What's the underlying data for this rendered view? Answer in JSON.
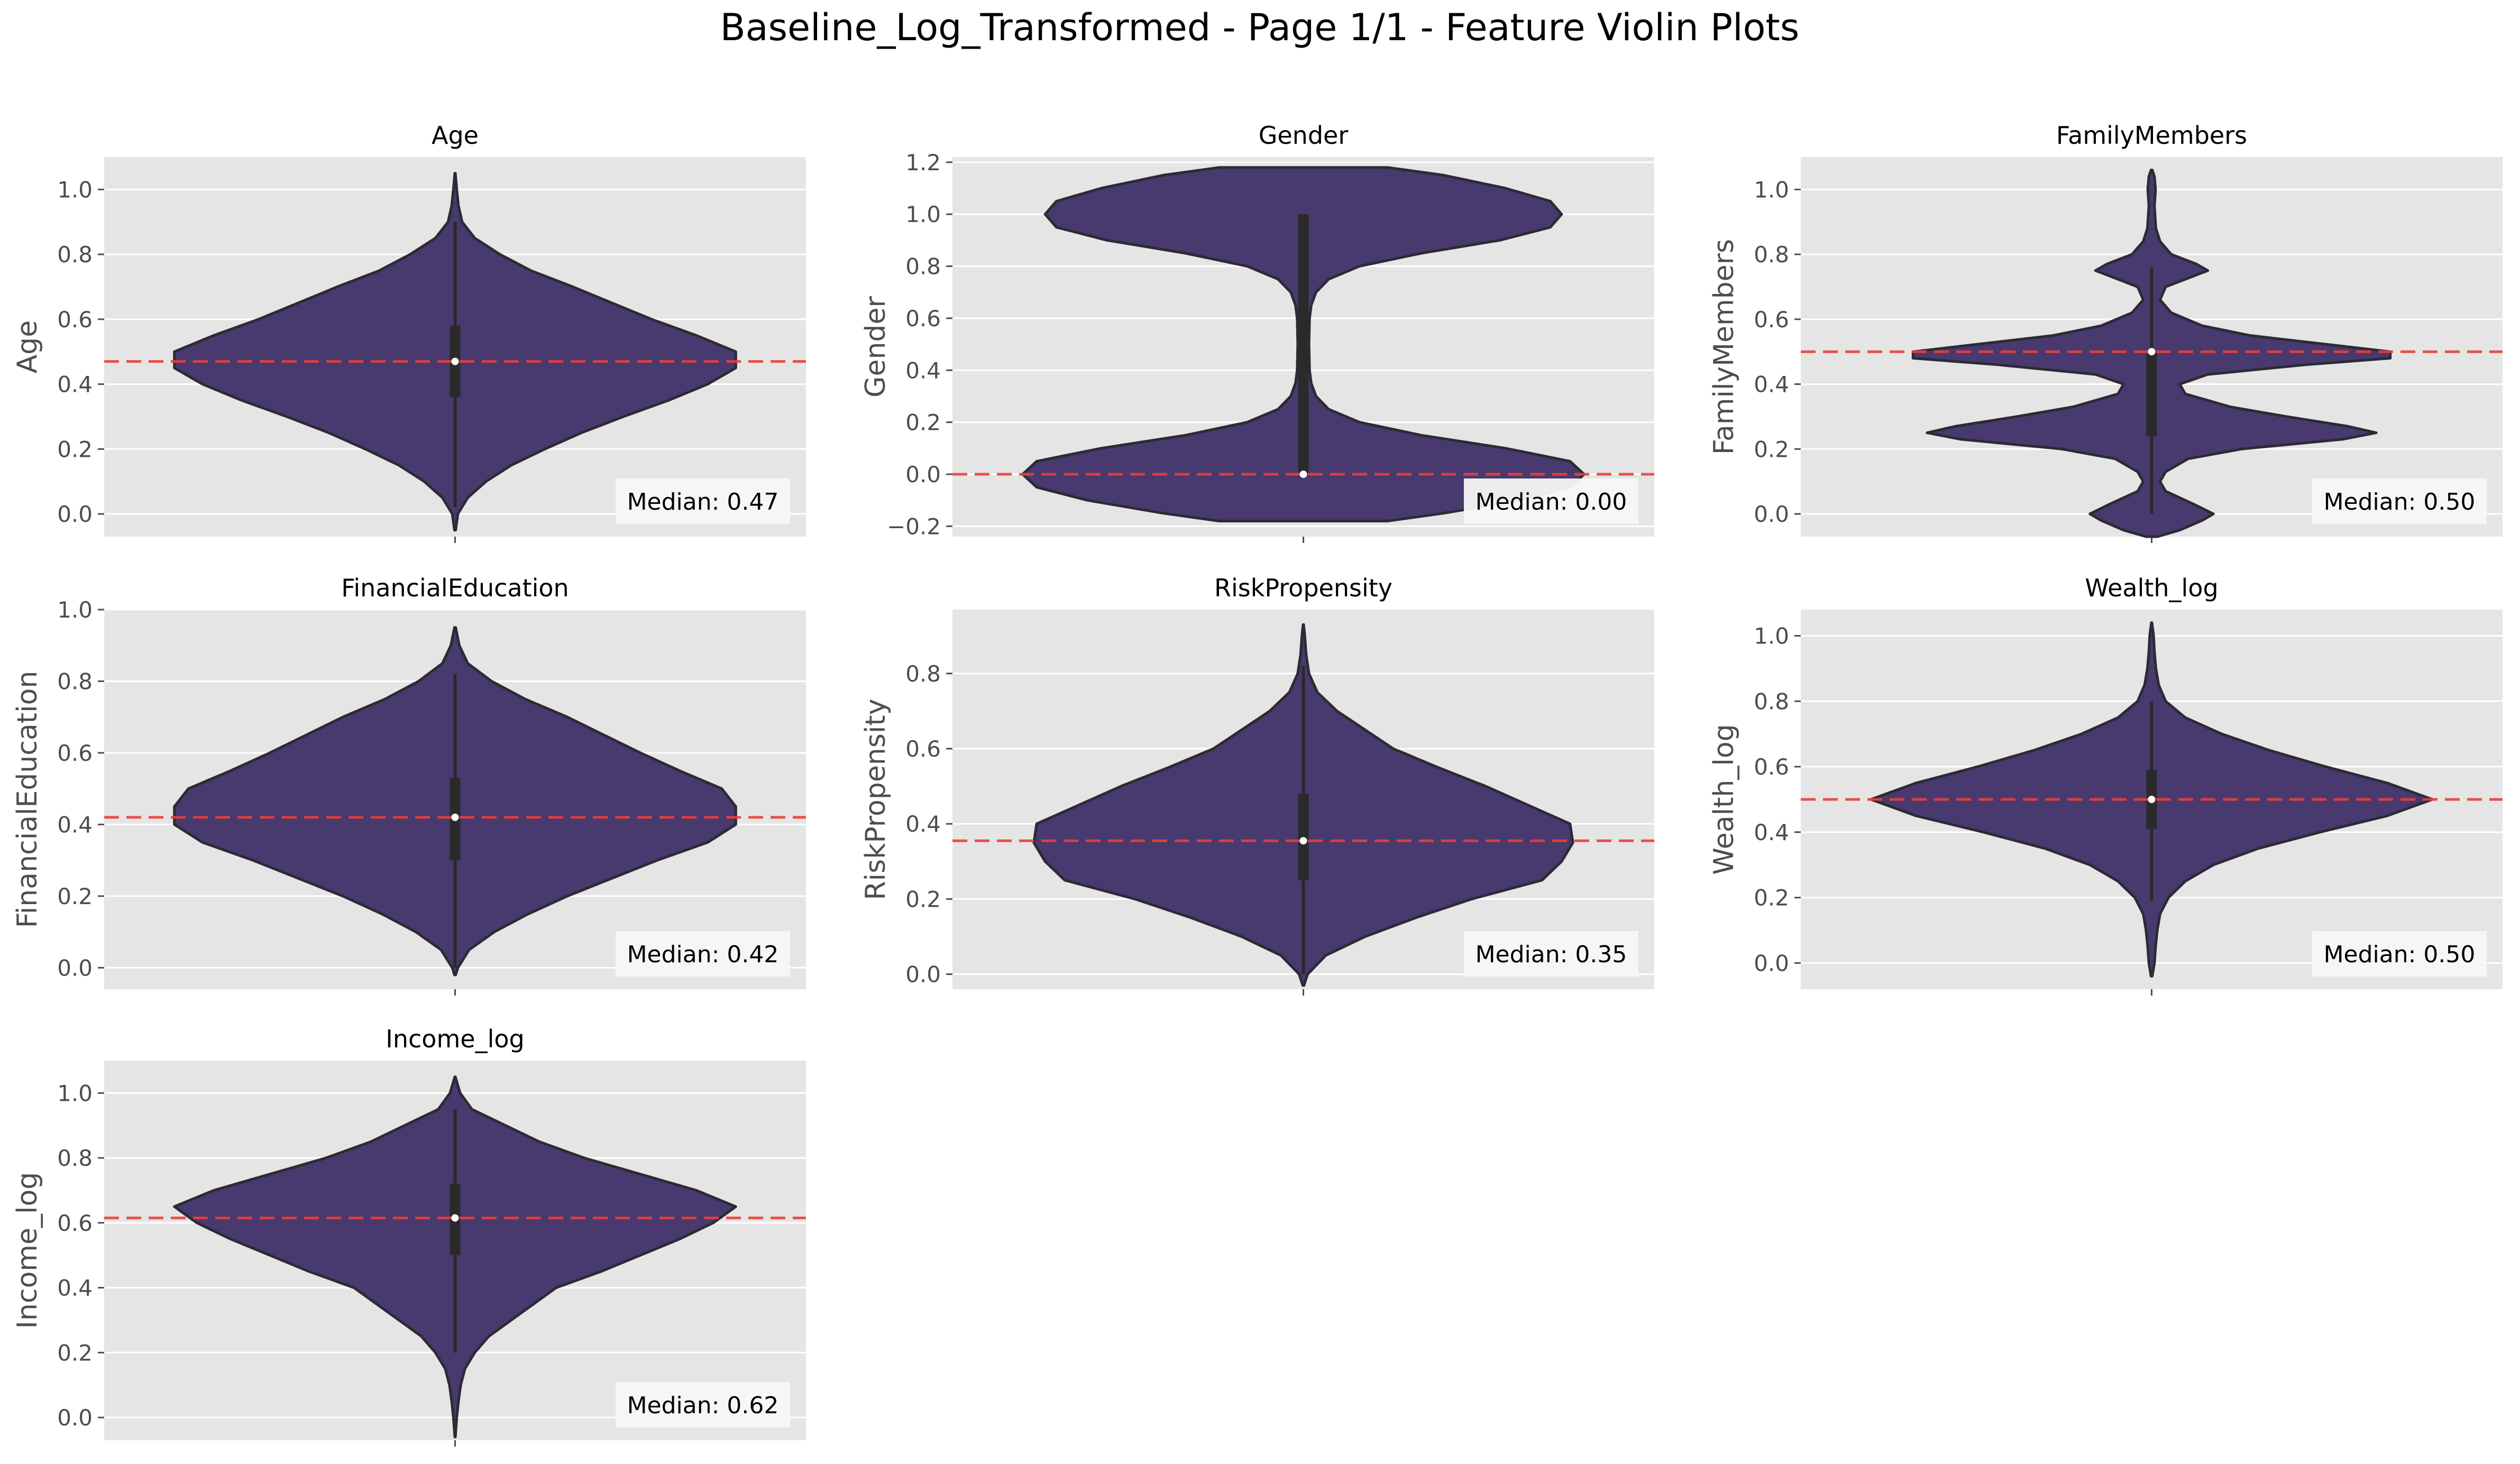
{
  "figure_title": "Baseline_Log_Transformed - Page 1/1 - Feature Violin Plots",
  "colors": {
    "panel_bg": "#e5e5e5",
    "grid": "#ffffff",
    "violin_fill": "#48396f",
    "violin_edge": "#2b2b35",
    "box": "#2a2a2a",
    "median_point": "#ffffff",
    "median_line": "#e8403a",
    "median_box_bg": "#f7f7f7"
  },
  "chart_data": [
    {
      "type": "violin",
      "title": "Age",
      "ylabel": "Age",
      "ylim": [
        -0.07,
        1.1
      ],
      "yticks": [
        "0.0",
        "0.2",
        "0.4",
        "0.6",
        "0.8",
        "1.0"
      ],
      "median": 0.47,
      "median_label": "Median: 0.47",
      "quartiles": [
        0.36,
        0.58
      ],
      "whiskers": [
        0.02,
        0.9
      ],
      "density": [
        [
          -0.05,
          0.002
        ],
        [
          0.0,
          0.01
        ],
        [
          0.05,
          0.045
        ],
        [
          0.1,
          0.11
        ],
        [
          0.15,
          0.2
        ],
        [
          0.2,
          0.32
        ],
        [
          0.25,
          0.45
        ],
        [
          0.3,
          0.6
        ],
        [
          0.35,
          0.76
        ],
        [
          0.4,
          0.9
        ],
        [
          0.45,
          1.0
        ],
        [
          0.5,
          1.0
        ],
        [
          0.55,
          0.86
        ],
        [
          0.6,
          0.7
        ],
        [
          0.65,
          0.56
        ],
        [
          0.7,
          0.42
        ],
        [
          0.75,
          0.27
        ],
        [
          0.8,
          0.16
        ],
        [
          0.85,
          0.07
        ],
        [
          0.9,
          0.025
        ],
        [
          0.95,
          0.012
        ],
        [
          1.0,
          0.006
        ],
        [
          1.05,
          0.001
        ]
      ]
    },
    {
      "type": "violin",
      "title": "Gender",
      "ylabel": "Gender",
      "ylim": [
        -0.24,
        1.22
      ],
      "yticks": [
        "−0.2",
        "0.0",
        "0.2",
        "0.4",
        "0.6",
        "0.8",
        "1.0",
        "1.2"
      ],
      "median": 0.0,
      "median_label": "Median: 0.00",
      "quartiles": [
        0.0,
        1.0
      ],
      "whiskers": [
        0.0,
        1.0
      ],
      "density": [
        [
          -0.18,
          0.3
        ],
        [
          -0.15,
          0.5
        ],
        [
          -0.1,
          0.77
        ],
        [
          -0.05,
          0.95
        ],
        [
          0.0,
          1.0
        ],
        [
          0.05,
          0.95
        ],
        [
          0.1,
          0.72
        ],
        [
          0.15,
          0.42
        ],
        [
          0.2,
          0.2
        ],
        [
          0.25,
          0.09
        ],
        [
          0.3,
          0.045
        ],
        [
          0.35,
          0.028
        ],
        [
          0.4,
          0.022
        ],
        [
          0.5,
          0.02
        ],
        [
          0.6,
          0.022
        ],
        [
          0.65,
          0.028
        ],
        [
          0.7,
          0.045
        ],
        [
          0.75,
          0.09
        ],
        [
          0.8,
          0.2
        ],
        [
          0.85,
          0.42
        ],
        [
          0.9,
          0.7
        ],
        [
          0.95,
          0.88
        ],
        [
          1.0,
          0.92
        ],
        [
          1.05,
          0.88
        ],
        [
          1.1,
          0.72
        ],
        [
          1.15,
          0.5
        ],
        [
          1.18,
          0.3
        ]
      ]
    },
    {
      "type": "violin",
      "title": "FamilyMembers",
      "ylabel": "FamilyMembers",
      "ylim": [
        -0.07,
        1.1
      ],
      "yticks": [
        "0.0",
        "0.2",
        "0.4",
        "0.6",
        "0.8",
        "1.0"
      ],
      "median": 0.5,
      "median_label": "Median: 0.50",
      "quartiles": [
        0.24,
        0.5
      ],
      "whiskers": [
        0.0,
        0.76
      ],
      "density": [
        [
          -0.07,
          0.02
        ],
        [
          -0.05,
          0.1
        ],
        [
          -0.02,
          0.18
        ],
        [
          0.0,
          0.22
        ],
        [
          0.03,
          0.15
        ],
        [
          0.07,
          0.05
        ],
        [
          0.1,
          0.03
        ],
        [
          0.13,
          0.05
        ],
        [
          0.17,
          0.13
        ],
        [
          0.2,
          0.32
        ],
        [
          0.23,
          0.68
        ],
        [
          0.25,
          0.8
        ],
        [
          0.27,
          0.7
        ],
        [
          0.3,
          0.48
        ],
        [
          0.33,
          0.28
        ],
        [
          0.37,
          0.12
        ],
        [
          0.4,
          0.1
        ],
        [
          0.43,
          0.2
        ],
        [
          0.46,
          0.55
        ],
        [
          0.48,
          0.85
        ],
        [
          0.5,
          0.85
        ],
        [
          0.52,
          0.65
        ],
        [
          0.55,
          0.35
        ],
        [
          0.58,
          0.18
        ],
        [
          0.62,
          0.07
        ],
        [
          0.66,
          0.03
        ],
        [
          0.7,
          0.05
        ],
        [
          0.73,
          0.14
        ],
        [
          0.75,
          0.2
        ],
        [
          0.77,
          0.16
        ],
        [
          0.8,
          0.07
        ],
        [
          0.84,
          0.03
        ],
        [
          0.88,
          0.015
        ],
        [
          0.95,
          0.01
        ],
        [
          1.0,
          0.014
        ],
        [
          1.04,
          0.01
        ],
        [
          1.06,
          0.002
        ]
      ]
    },
    {
      "type": "violin",
      "title": "FinancialEducation",
      "ylabel": "FinancialEducation",
      "ylim": [
        -0.06,
        1.0
      ],
      "yticks": [
        "0.0",
        "0.2",
        "0.4",
        "0.6",
        "0.8",
        "1.0"
      ],
      "median": 0.42,
      "median_label": "Median: 0.42",
      "quartiles": [
        0.3,
        0.53
      ],
      "whiskers": [
        0.0,
        0.82
      ],
      "density": [
        [
          -0.02,
          0.002
        ],
        [
          0.0,
          0.01
        ],
        [
          0.05,
          0.05
        ],
        [
          0.1,
          0.14
        ],
        [
          0.15,
          0.26
        ],
        [
          0.2,
          0.4
        ],
        [
          0.25,
          0.56
        ],
        [
          0.3,
          0.72
        ],
        [
          0.35,
          0.9
        ],
        [
          0.4,
          1.0
        ],
        [
          0.45,
          1.0
        ],
        [
          0.5,
          0.95
        ],
        [
          0.55,
          0.8
        ],
        [
          0.6,
          0.66
        ],
        [
          0.65,
          0.53
        ],
        [
          0.7,
          0.4
        ],
        [
          0.75,
          0.25
        ],
        [
          0.8,
          0.13
        ],
        [
          0.85,
          0.045
        ],
        [
          0.9,
          0.015
        ],
        [
          0.95,
          0.002
        ]
      ]
    },
    {
      "type": "violin",
      "title": "RiskPropensity",
      "ylabel": "RiskPropensity",
      "ylim": [
        -0.04,
        0.97
      ],
      "yticks": [
        "0.0",
        "0.2",
        "0.4",
        "0.6",
        "0.8"
      ],
      "median": 0.355,
      "median_label": "Median: 0.35",
      "quartiles": [
        0.25,
        0.48
      ],
      "whiskers": [
        0.0,
        0.82
      ],
      "density": [
        [
          -0.03,
          0.002
        ],
        [
          0.0,
          0.015
        ],
        [
          0.05,
          0.08
        ],
        [
          0.1,
          0.22
        ],
        [
          0.15,
          0.4
        ],
        [
          0.2,
          0.6
        ],
        [
          0.25,
          0.85
        ],
        [
          0.3,
          0.92
        ],
        [
          0.35,
          0.96
        ],
        [
          0.4,
          0.95
        ],
        [
          0.45,
          0.8
        ],
        [
          0.5,
          0.65
        ],
        [
          0.55,
          0.48
        ],
        [
          0.6,
          0.32
        ],
        [
          0.65,
          0.22
        ],
        [
          0.7,
          0.12
        ],
        [
          0.75,
          0.05
        ],
        [
          0.8,
          0.02
        ],
        [
          0.85,
          0.01
        ],
        [
          0.9,
          0.005
        ],
        [
          0.93,
          0.001
        ]
      ]
    },
    {
      "type": "violin",
      "title": "Wealth_log",
      "ylabel": "Wealth_log",
      "ylim": [
        -0.08,
        1.08
      ],
      "yticks": [
        "0.0",
        "0.2",
        "0.4",
        "0.6",
        "0.8",
        "1.0"
      ],
      "median": 0.5,
      "median_label": "Median: 0.50",
      "quartiles": [
        0.41,
        0.59
      ],
      "whiskers": [
        0.19,
        0.8
      ],
      "density": [
        [
          -0.04,
          0.002
        ],
        [
          0.0,
          0.01
        ],
        [
          0.05,
          0.014
        ],
        [
          0.1,
          0.02
        ],
        [
          0.15,
          0.03
        ],
        [
          0.2,
          0.06
        ],
        [
          0.25,
          0.12
        ],
        [
          0.3,
          0.22
        ],
        [
          0.35,
          0.38
        ],
        [
          0.4,
          0.6
        ],
        [
          0.45,
          0.84
        ],
        [
          0.5,
          1.0
        ],
        [
          0.55,
          0.84
        ],
        [
          0.6,
          0.62
        ],
        [
          0.65,
          0.42
        ],
        [
          0.7,
          0.25
        ],
        [
          0.75,
          0.12
        ],
        [
          0.8,
          0.05
        ],
        [
          0.85,
          0.025
        ],
        [
          0.9,
          0.015
        ],
        [
          0.95,
          0.01
        ],
        [
          1.0,
          0.007
        ],
        [
          1.04,
          0.001
        ]
      ]
    },
    {
      "type": "violin",
      "title": "Income_log",
      "ylabel": "Income_log",
      "ylim": [
        -0.07,
        1.1
      ],
      "yticks": [
        "0.0",
        "0.2",
        "0.4",
        "0.6",
        "0.8",
        "1.0"
      ],
      "median": 0.615,
      "median_label": "Median: 0.62",
      "quartiles": [
        0.5,
        0.72
      ],
      "whiskers": [
        0.2,
        0.95
      ],
      "density": [
        [
          -0.06,
          0.001
        ],
        [
          0.0,
          0.006
        ],
        [
          0.05,
          0.012
        ],
        [
          0.1,
          0.02
        ],
        [
          0.15,
          0.035
        ],
        [
          0.2,
          0.07
        ],
        [
          0.25,
          0.12
        ],
        [
          0.3,
          0.2
        ],
        [
          0.35,
          0.28
        ],
        [
          0.4,
          0.36
        ],
        [
          0.45,
          0.52
        ],
        [
          0.5,
          0.66
        ],
        [
          0.55,
          0.8
        ],
        [
          0.6,
          0.92
        ],
        [
          0.65,
          1.0
        ],
        [
          0.7,
          0.86
        ],
        [
          0.75,
          0.66
        ],
        [
          0.8,
          0.46
        ],
        [
          0.85,
          0.3
        ],
        [
          0.9,
          0.18
        ],
        [
          0.95,
          0.06
        ],
        [
          1.0,
          0.018
        ],
        [
          1.05,
          0.001
        ]
      ]
    }
  ]
}
